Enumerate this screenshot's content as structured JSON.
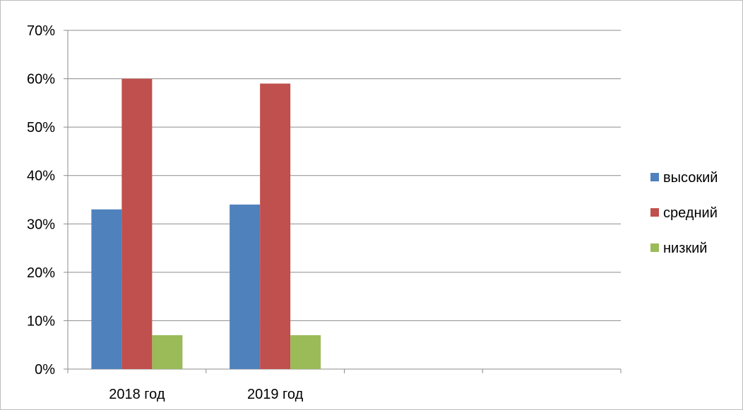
{
  "chart_data": {
    "type": "bar",
    "categories": [
      "2018 год",
      "2019 год",
      "",
      ""
    ],
    "series": [
      {
        "name": "высокий",
        "values": [
          33,
          34,
          null,
          null
        ],
        "color": "#4F81BD"
      },
      {
        "name": "средний",
        "values": [
          60,
          59,
          null,
          null
        ],
        "color": "#C0504D"
      },
      {
        "name": "низкий",
        "values": [
          7,
          7,
          null,
          null
        ],
        "color": "#9BBB59"
      }
    ],
    "ylim": [
      0,
      70
    ],
    "yticks": [
      0,
      10,
      20,
      30,
      40,
      50,
      60,
      70
    ],
    "ytick_labels": [
      "0%",
      "10%",
      "20%",
      "30%",
      "40%",
      "50%",
      "60%",
      "70%"
    ],
    "title": "",
    "xlabel": "",
    "ylabel": "",
    "grid": "horizontal",
    "legend_position": "right"
  }
}
